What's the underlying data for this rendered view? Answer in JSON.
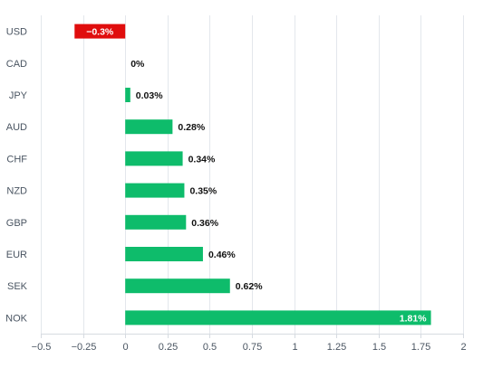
{
  "chart_data": {
    "type": "bar",
    "orientation": "horizontal",
    "categories": [
      "USD",
      "CAD",
      "JPY",
      "AUD",
      "CHF",
      "NZD",
      "GBP",
      "EUR",
      "SEK",
      "NOK"
    ],
    "values": [
      -0.3,
      0,
      0.03,
      0.28,
      0.34,
      0.35,
      0.36,
      0.46,
      0.62,
      1.81
    ],
    "value_labels": [
      "−0.3%",
      "0%",
      "0.03%",
      "0.28%",
      "0.34%",
      "0.35%",
      "0.36%",
      "0.46%",
      "0.62%",
      "1.81%"
    ],
    "xlim": [
      -0.5,
      2
    ],
    "x_ticks": [
      -0.5,
      -0.25,
      0,
      0.25,
      0.5,
      0.75,
      1,
      1.25,
      1.5,
      1.75,
      2
    ],
    "x_tick_labels": [
      "−0.5",
      "−0.25",
      "0",
      "0.25",
      "0.5",
      "0.75",
      "1",
      "1.25",
      "1.5",
      "1.75",
      "2"
    ],
    "grid": "vertical",
    "colors": {
      "positive": "#0ebc6b",
      "negative": "#e00d0d"
    }
  }
}
